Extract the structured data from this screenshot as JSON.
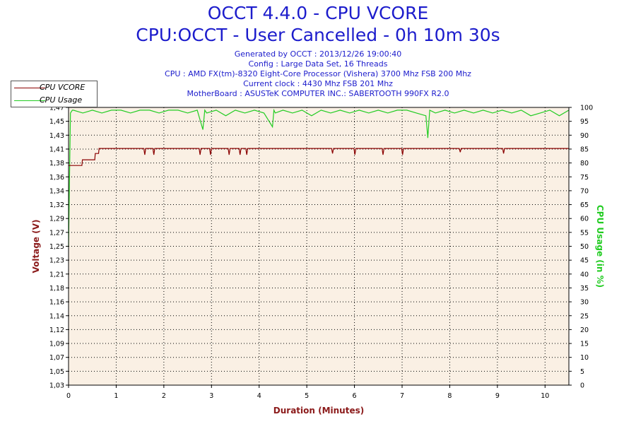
{
  "chart_data": {
    "type": "line",
    "title": "OCCT 4.4.0 - CPU VCORE",
    "subtitle": "CPU:OCCT - User Cancelled - 0h 10m 30s",
    "info_lines": [
      "Generated by OCCT : 2013/12/26 19:00:40",
      "Config : Large Data Set, 16 Threads",
      "CPU : AMD FX(tm)-8320 Eight-Core Processor (Vishera) 3700 Mhz FSB 200 Mhz",
      "Current clock : 4430 Mhz FSB 201 Mhz",
      "MotherBoard : ASUSTeK COMPUTER INC.: SABERTOOTH 990FX R2.0"
    ],
    "xlabel": "Duration (Minutes)",
    "ylabel": "Voltage (V)",
    "y2label": "CPU Usage (in %)",
    "xlim": [
      0,
      10.5
    ],
    "ylim": [
      1.03,
      1.47
    ],
    "y2lim": [
      0,
      100
    ],
    "x_ticks": [
      "0",
      "1",
      "2",
      "3",
      "4",
      "5",
      "6",
      "7",
      "8",
      "9",
      "10"
    ],
    "y_ticks": [
      "1,03",
      "1,05",
      "1,07",
      "1,09",
      "1,12",
      "1,14",
      "1,16",
      "1,18",
      "1,21",
      "1,23",
      "1,25",
      "1,27",
      "1,29",
      "1,32",
      "1,34",
      "1,36",
      "1,38",
      "1,41",
      "1,43",
      "1,45",
      "1,47"
    ],
    "y2_ticks": [
      "0",
      "5",
      "10",
      "15",
      "20",
      "25",
      "30",
      "35",
      "40",
      "45",
      "50",
      "55",
      "60",
      "65",
      "70",
      "75",
      "80",
      "85",
      "90",
      "95",
      "100"
    ],
    "grid": true,
    "legend_position": "top-left",
    "colors": {
      "vcore": "#8b0000",
      "usage": "#22cc22",
      "plot_bg": "#faf0e4",
      "title": "#1c1ccc"
    },
    "series": [
      {
        "name": "CPU VCORE",
        "axis": "left",
        "x": [
          0,
          0.28,
          0.29,
          0.55,
          0.56,
          0.63,
          0.64,
          1.58,
          1.6,
          1.62,
          1.77,
          1.79,
          1.81,
          2.74,
          2.76,
          2.78,
          2.96,
          2.98,
          3.0,
          3.35,
          3.37,
          3.39,
          3.58,
          3.6,
          3.62,
          3.72,
          3.74,
          3.76,
          5.52,
          5.54,
          5.56,
          5.99,
          6.01,
          6.03,
          6.58,
          6.6,
          6.62,
          6.99,
          7.01,
          7.03,
          8.2,
          8.22,
          8.24,
          9.11,
          9.13,
          9.15,
          10.5
        ],
        "values": [
          1.378,
          1.378,
          1.387,
          1.387,
          1.397,
          1.397,
          1.405,
          1.405,
          1.395,
          1.405,
          1.405,
          1.395,
          1.405,
          1.405,
          1.395,
          1.405,
          1.405,
          1.395,
          1.405,
          1.405,
          1.395,
          1.405,
          1.405,
          1.395,
          1.405,
          1.405,
          1.395,
          1.405,
          1.405,
          1.397,
          1.405,
          1.405,
          1.395,
          1.405,
          1.405,
          1.395,
          1.405,
          1.405,
          1.395,
          1.405,
          1.405,
          1.399,
          1.405,
          1.405,
          1.397,
          1.405,
          1.405
        ]
      },
      {
        "name": "CPU Usage",
        "axis": "right",
        "x": [
          0,
          0.04,
          0.08,
          0.1,
          0.3,
          0.5,
          0.7,
          0.9,
          1.1,
          1.3,
          1.5,
          1.7,
          1.9,
          2.1,
          2.3,
          2.5,
          2.7,
          2.82,
          2.86,
          2.9,
          3.1,
          3.3,
          3.5,
          3.7,
          3.9,
          4.1,
          4.28,
          4.31,
          4.34,
          4.5,
          4.7,
          4.9,
          5.1,
          5.3,
          5.5,
          5.7,
          5.9,
          6.1,
          6.3,
          6.5,
          6.7,
          6.9,
          7.1,
          7.3,
          7.5,
          7.54,
          7.58,
          7.7,
          7.9,
          8.1,
          8.3,
          8.5,
          8.7,
          8.9,
          9.1,
          9.3,
          9.5,
          9.7,
          9.9,
          10.1,
          10.3,
          10.5
        ],
        "values": [
          50,
          98,
          99,
          99,
          98,
          99,
          98,
          99,
          99,
          98,
          99,
          99,
          98,
          99,
          99,
          98,
          99,
          92,
          99,
          98,
          99,
          97,
          99,
          98,
          99,
          98,
          93,
          99,
          98,
          99,
          98,
          99,
          97,
          99,
          98,
          99,
          98,
          99,
          98,
          99,
          98,
          99,
          99,
          98,
          97,
          89,
          99,
          98,
          99,
          98,
          99,
          98,
          99,
          98,
          99,
          98,
          99,
          97,
          98,
          99,
          97,
          99
        ]
      }
    ]
  }
}
